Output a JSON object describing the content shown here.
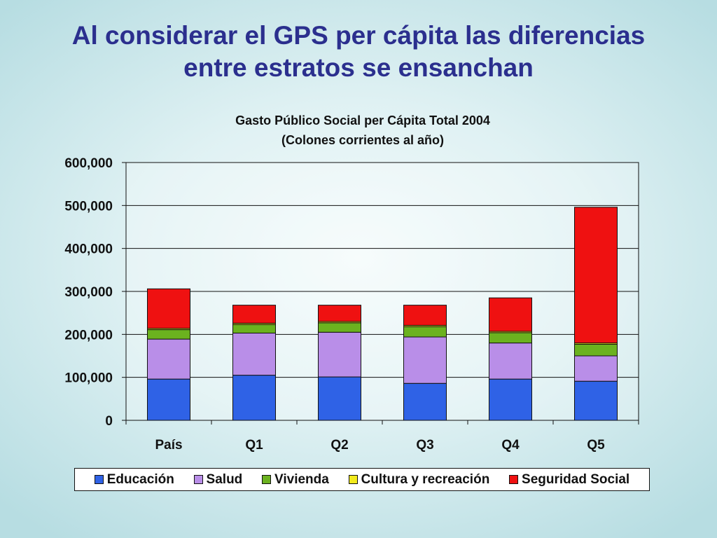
{
  "slide": {
    "title_line1": "Al considerar el GPS per cápita las diferencias",
    "title_line2": "entre estratos se ensanchan"
  },
  "chart_data": {
    "type": "bar",
    "stacked": true,
    "title": "Gasto Público Social per Cápita Total 2004",
    "subtitle": "(Colones corrientes al año)",
    "categories": [
      "País",
      "Q1",
      "Q2",
      "Q3",
      "Q4",
      "Q5"
    ],
    "ylim": [
      0,
      600000
    ],
    "yticks": [
      0,
      100000,
      200000,
      300000,
      400000,
      500000,
      600000
    ],
    "ytick_labels": [
      "0",
      "100,000",
      "200,000",
      "300,000",
      "400,000",
      "500,000",
      "600,000"
    ],
    "grid": true,
    "legend_position": "bottom",
    "series": [
      {
        "name": "Educación",
        "color": "#2f62e6",
        "values": [
          96000,
          105000,
          101000,
          86000,
          96000,
          91000
        ]
      },
      {
        "name": "Salud",
        "color": "#b98ee8",
        "values": [
          93000,
          98000,
          104000,
          108000,
          84000,
          59000
        ]
      },
      {
        "name": "Vivienda",
        "color": "#6bb21f",
        "values": [
          22000,
          20000,
          22000,
          24000,
          24000,
          27000
        ]
      },
      {
        "name": "Cultura y recreación",
        "color": "#f2ea1c",
        "values": [
          3000,
          3000,
          3000,
          3000,
          3000,
          3000
        ]
      },
      {
        "name": "Seguridad Social",
        "color": "#ef1111",
        "values": [
          92000,
          42000,
          38000,
          47000,
          78000,
          316000
        ]
      }
    ]
  }
}
